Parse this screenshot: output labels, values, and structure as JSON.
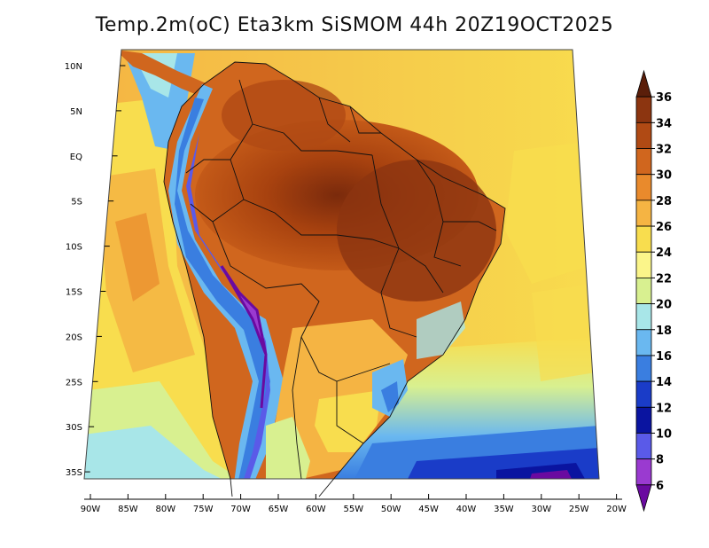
{
  "title": "Temp.2m(oC) Eta3km SiSMOM 44h 20Z19OCT2025",
  "map": {
    "lat_ticks": [
      "10N",
      "5N",
      "EQ",
      "5S",
      "10S",
      "15S",
      "20S",
      "25S",
      "30S",
      "35S"
    ],
    "lon_ticks": [
      "90W",
      "85W",
      "80W",
      "75W",
      "70W",
      "65W",
      "60W",
      "55W",
      "50W",
      "45W",
      "40W",
      "35W",
      "30W",
      "25W",
      "20W"
    ]
  },
  "colorbar": {
    "labels": [
      "36",
      "34",
      "32",
      "30",
      "28",
      "26",
      "24",
      "22",
      "20",
      "18",
      "16",
      "14",
      "12",
      "10",
      "8",
      "6"
    ],
    "colors": [
      "#5a1e0a",
      "#8c3510",
      "#b04a14",
      "#d0661e",
      "#e98a2c",
      "#f5b443",
      "#f8dd4e",
      "#fbf58a",
      "#d8f090",
      "#a8e6e8",
      "#6ab8f0",
      "#3a7ee0",
      "#1a3cc8",
      "#0a14a0",
      "#5a5ae8",
      "#9a3ad0",
      "#6a0aa0"
    ]
  }
}
